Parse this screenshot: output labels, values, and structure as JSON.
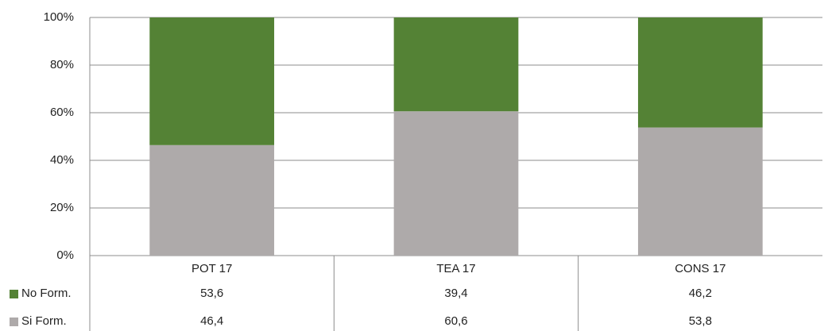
{
  "chart_data": {
    "type": "stacked_bar_100",
    "categories": [
      "POT 17",
      "TEA 17",
      "CONS 17"
    ],
    "series": [
      {
        "name": "No Form.",
        "color": "#548235",
        "values": [
          53.6,
          39.4,
          46.2
        ],
        "value_labels": [
          "53,6",
          "39,4",
          "46,2"
        ]
      },
      {
        "name": "Si Form.",
        "color": "#aeaaaa",
        "values": [
          46.4,
          60.6,
          53.8
        ],
        "value_labels": [
          "46,4",
          "60,6",
          "53,8"
        ]
      }
    ],
    "ylim": [
      0,
      100
    ],
    "yticks": [
      {
        "value": 0,
        "label": "0%"
      },
      {
        "value": 20,
        "label": "20%"
      },
      {
        "value": 40,
        "label": "40%"
      },
      {
        "value": 60,
        "label": "60%"
      },
      {
        "value": 80,
        "label": "80%"
      },
      {
        "value": 100,
        "label": "100%"
      }
    ],
    "grid": true
  }
}
